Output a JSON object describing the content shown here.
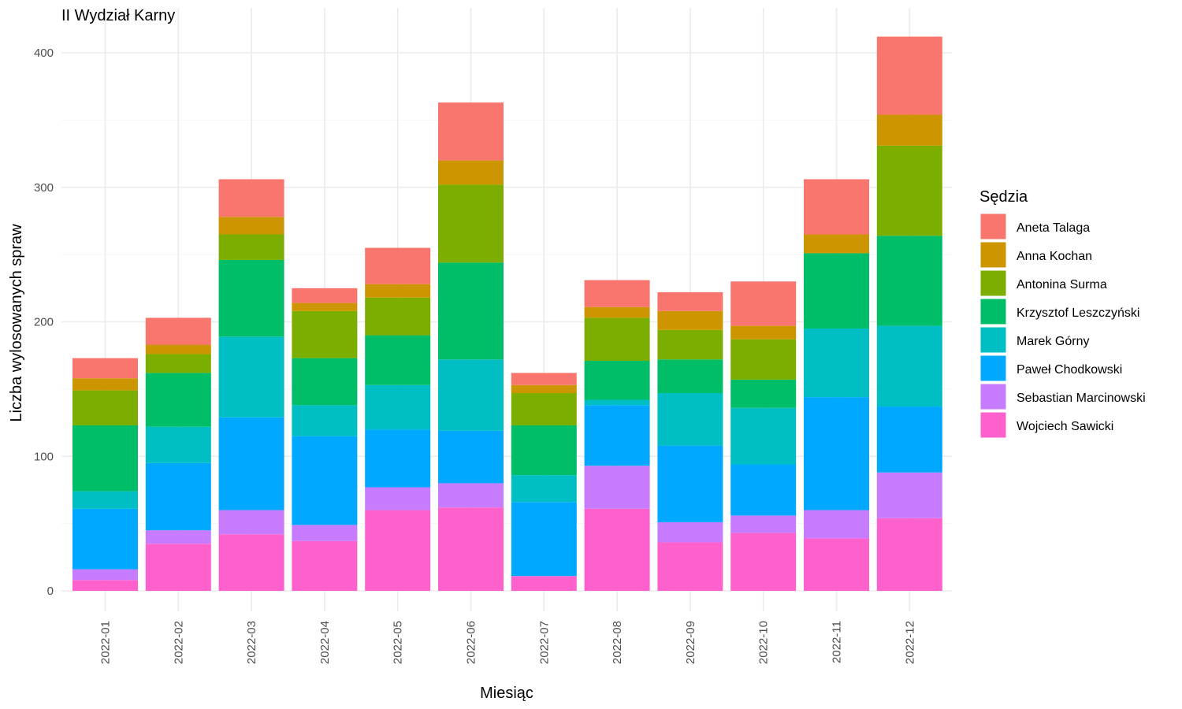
{
  "chart_data": {
    "type": "bar",
    "stacked": true,
    "title": "II Wydział Karny",
    "xlabel": "Miesiąc",
    "ylabel": "Liczba wylosowanych spraw",
    "ylim": [
      -15,
      420
    ],
    "yticks": [
      0,
      100,
      200,
      300,
      400
    ],
    "grid": true,
    "legend_title": "Sędzia",
    "legend_position": "right",
    "categories": [
      "2022-01",
      "2022-02",
      "2022-03",
      "2022-04",
      "2022-05",
      "2022-06",
      "2022-07",
      "2022-08",
      "2022-09",
      "2022-10",
      "2022-11",
      "2022-12"
    ],
    "stack_order_bottom_to_top": [
      "Wojciech Sawicki",
      "Sebastian Marcinowski",
      "Paweł Chodkowski",
      "Marek Górny",
      "Krzysztof Leszczyński",
      "Antonina Surma",
      "Anna Kochan",
      "Aneta Talaga"
    ],
    "series": [
      {
        "name": "Aneta Talaga",
        "color": "#F8766D",
        "values": [
          15,
          20,
          28,
          11,
          27,
          43,
          9,
          20,
          14,
          33,
          41,
          58
        ]
      },
      {
        "name": "Anna Kochan",
        "color": "#CD9600",
        "values": [
          9,
          7,
          13,
          6,
          10,
          18,
          6,
          8,
          14,
          10,
          14,
          23
        ]
      },
      {
        "name": "Antonina Surma",
        "color": "#7CAE00",
        "values": [
          26,
          14,
          19,
          35,
          28,
          58,
          24,
          32,
          22,
          30,
          0,
          67
        ]
      },
      {
        "name": "Krzysztof Leszczyński",
        "color": "#00BE67",
        "values": [
          49,
          40,
          57,
          35,
          37,
          72,
          37,
          29,
          25,
          21,
          56,
          67
        ]
      },
      {
        "name": "Marek Górny",
        "color": "#00BFC4",
        "values": [
          13,
          27,
          60,
          23,
          33,
          53,
          20,
          4,
          39,
          42,
          51,
          60
        ]
      },
      {
        "name": "Paweł Chodkowski",
        "color": "#00A9FF",
        "values": [
          45,
          50,
          69,
          66,
          43,
          39,
          55,
          45,
          57,
          38,
          84,
          49
        ]
      },
      {
        "name": "Sebastian Marcinowski",
        "color": "#C77CFF",
        "values": [
          8,
          10,
          18,
          12,
          17,
          18,
          0,
          32,
          15,
          13,
          21,
          34
        ]
      },
      {
        "name": "Wojciech Sawicki",
        "color": "#FF61CC",
        "values": [
          8,
          35,
          42,
          37,
          60,
          62,
          11,
          61,
          36,
          43,
          39,
          54
        ]
      }
    ]
  }
}
